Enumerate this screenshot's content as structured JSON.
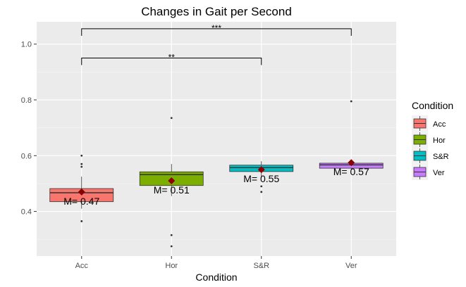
{
  "chart_data": {
    "type": "box",
    "title": "Changes in Gait per Second",
    "xlabel": "Condition",
    "ylabel": "",
    "ylim": [
      0.24,
      1.08
    ],
    "yticks": [
      0.4,
      0.6,
      0.8,
      1.0
    ],
    "ytick_labels": [
      "0.4",
      "0.6",
      "0.8",
      "1.0"
    ],
    "categories": [
      "Acc",
      "Hor",
      "S&R",
      "Ver"
    ],
    "colors": [
      "#F8766D",
      "#7CAE00",
      "#00BFC4",
      "#C77CFF"
    ],
    "mean_color": "#8B0000",
    "grid": true,
    "legend": {
      "title": "Condition",
      "position": "right",
      "entries": [
        "Acc",
        "Hor",
        "S&R",
        "Ver"
      ]
    },
    "boxes": [
      {
        "category": "Acc",
        "q1": 0.435,
        "median": 0.467,
        "q3": 0.482,
        "whisker_low": 0.41,
        "whisker_high": 0.525,
        "mean": 0.47,
        "mean_label": "M= 0.47",
        "outliers": [
          0.365,
          0.56,
          0.57,
          0.6
        ]
      },
      {
        "category": "Hor",
        "q1": 0.493,
        "median": 0.532,
        "q3": 0.542,
        "whisker_low": 0.455,
        "whisker_high": 0.57,
        "mean": 0.51,
        "mean_label": "M= 0.51",
        "outliers": [
          0.275,
          0.315,
          0.735
        ]
      },
      {
        "category": "S&R",
        "q1": 0.543,
        "median": 0.557,
        "q3": 0.566,
        "whisker_low": 0.52,
        "whisker_high": 0.58,
        "mean": 0.55,
        "mean_label": "M= 0.55",
        "outliers": [
          0.47,
          0.49
        ]
      },
      {
        "category": "Ver",
        "q1": 0.555,
        "median": 0.567,
        "q3": 0.573,
        "whisker_low": 0.55,
        "whisker_high": 0.58,
        "mean": 0.575,
        "mean_label": "M= 0.57",
        "outliers": [
          0.795
        ]
      }
    ],
    "significance": [
      {
        "from": "Acc",
        "to": "Ver",
        "y": 1.055,
        "label": "***"
      },
      {
        "from": "Acc",
        "to": "S&R",
        "y": 0.95,
        "label": "**"
      }
    ]
  }
}
